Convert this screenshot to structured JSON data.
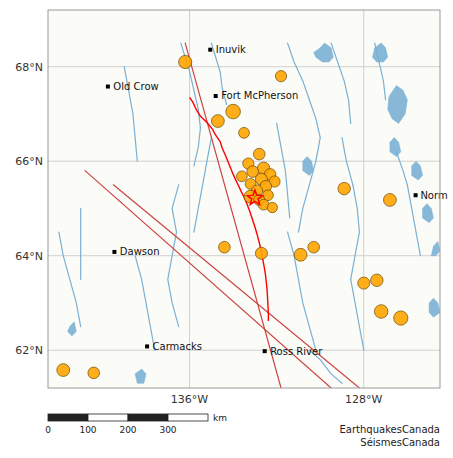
{
  "chart_data": {
    "type": "map",
    "xlim": [
      -142.5,
      -124.5
    ],
    "ylim": [
      61.2,
      69.2
    ],
    "xticks": [
      {
        "value": -136,
        "label": "136°W"
      },
      {
        "value": -128,
        "label": "128°W"
      }
    ],
    "yticks": [
      {
        "value": 62,
        "label": "62°N"
      },
      {
        "value": 64,
        "label": "64°N"
      },
      {
        "value": 66,
        "label": "66°N"
      },
      {
        "value": 68,
        "label": "68°N"
      }
    ],
    "grid": true,
    "series": [
      {
        "type": "line",
        "color": "#7ab0d4",
        "lines": [
          {
            "x": [
              -136.4,
              -136.2,
              -136.0,
              -135.8,
              -135.6,
              -135.5,
              -135.6,
              -135.8
            ],
            "y": [
              68.5,
              68.2,
              67.9,
              67.5,
              67.1,
              66.7,
              66.3,
              65.9
            ]
          },
          {
            "x": [
              -135.0,
              -134.8,
              -134.6,
              -134.5,
              -134.3
            ],
            "y": [
              68.5,
              68.2,
              67.9,
              67.55,
              67.2
            ]
          },
          {
            "x": [
              -131.5,
              -131.2,
              -130.8,
              -130.5,
              -130.2,
              -130.0
            ],
            "y": [
              68.5,
              68.1,
              67.7,
              67.3,
              66.9,
              66.5
            ]
          },
          {
            "x": [
              -129.5,
              -129.2,
              -128.9,
              -128.7,
              -128.6
            ],
            "y": [
              68.5,
              68.1,
              67.7,
              67.3,
              66.8
            ]
          },
          {
            "x": [
              -127.5,
              -127.3,
              -127.1,
              -127.0
            ],
            "y": [
              68.5,
              68.1,
              67.7,
              67.3
            ]
          },
          {
            "x": [
              -135.0,
              -135.2,
              -135.4,
              -135.6,
              -135.8
            ],
            "y": [
              66.5,
              66.0,
              65.5,
              65.0,
              64.5
            ]
          },
          {
            "x": [
              -132.0,
              -131.8,
              -131.6,
              -131.5,
              -131.4
            ],
            "y": [
              66.8,
              66.3,
              65.8,
              65.3,
              64.8
            ]
          },
          {
            "x": [
              -130.0,
              -130.2,
              -130.5,
              -130.8,
              -131.0
            ],
            "y": [
              66.5,
              66.0,
              65.5,
              65.0,
              64.5
            ]
          },
          {
            "x": [
              -128.5,
              -128.3,
              -128.2,
              -128.4,
              -128.6
            ],
            "y": [
              65.5,
              65.0,
              64.5,
              64.0,
              63.5
            ]
          },
          {
            "x": [
              -129.0,
              -128.8,
              -128.5
            ],
            "y": [
              66.5,
              66.0,
              65.5
            ]
          },
          {
            "x": [
              -136.5,
              -136.8,
              -136.6,
              -136.8,
              -137.0,
              -136.8,
              -136.5
            ],
            "y": [
              65.5,
              65.0,
              64.5,
              64.0,
              63.5,
              63.0,
              62.5
            ]
          },
          {
            "x": [
              -141.0,
              -141.0,
              -141.0,
              -141.0
            ],
            "y": [
              65.0,
              64.5,
              64.0,
              63.5
            ]
          },
          {
            "x": [
              -138.5,
              -138.2,
              -138.0,
              -137.8,
              -137.6
            ],
            "y": [
              64.0,
              63.5,
              63.0,
              62.5,
              62.0
            ]
          },
          {
            "x": [
              -131.5,
              -131.2,
              -131.0,
              -130.8,
              -130.5,
              -130.2
            ],
            "y": [
              64.5,
              64.0,
              63.5,
              63.0,
              62.5,
              62.0
            ]
          },
          {
            "x": [
              -128.6,
              -128.4,
              -128.2,
              -128.0
            ],
            "y": [
              63.5,
              63.0,
              62.5,
              62.0
            ]
          },
          {
            "x": [
              -130.5,
              -130.0,
              -129.5,
              -129.0
            ],
            "y": [
              62.0,
              61.8,
              61.5,
              61.3
            ]
          },
          {
            "x": [
              -126.0,
              -125.8,
              -125.6,
              -125.4
            ],
            "y": [
              65.5,
              65.0,
              64.5,
              64.0
            ]
          },
          {
            "x": [
              -126.5,
              -126.2,
              -126.0
            ],
            "y": [
              66.2,
              65.8,
              65.5
            ]
          },
          {
            "x": [
              -139.0,
              -138.8,
              -138.6,
              -138.5,
              -138.4
            ],
            "y": [
              68.0,
              67.5,
              67.0,
              66.5,
              66.0
            ]
          },
          {
            "x": [
              -142.0,
              -141.8,
              -141.5,
              -141.2,
              -141.0
            ],
            "y": [
              64.5,
              64.0,
              63.5,
              63.0,
              62.5
            ]
          }
        ]
      },
      {
        "type": "area",
        "color": "#7ab0d4",
        "polygons": [
          {
            "x": [
              -130.3,
              -130.0,
              -129.8,
              -129.5,
              -129.4,
              -129.6,
              -129.9,
              -130.2
            ],
            "y": [
              68.3,
              68.4,
              68.5,
              68.4,
              68.2,
              68.1,
              68.1,
              68.2
            ]
          },
          {
            "x": [
              -127.5,
              -127.2,
              -127.0,
              -126.9,
              -127.1,
              -127.4,
              -127.6
            ],
            "y": [
              68.4,
              68.5,
              68.4,
              68.2,
              68.1,
              68.1,
              68.2
            ]
          },
          {
            "x": [
              -126.8,
              -126.5,
              -126.2,
              -126.0,
              -126.1,
              -126.4,
              -126.7,
              -126.9,
              -126.85
            ],
            "y": [
              67.4,
              67.6,
              67.5,
              67.3,
              67.0,
              66.8,
              66.9,
              67.1,
              67.35
            ]
          },
          {
            "x": [
              -126.8,
              -126.6,
              -126.4,
              -126.3,
              -126.5,
              -126.8
            ],
            "y": [
              66.4,
              66.5,
              66.4,
              66.2,
              66.1,
              66.2
            ]
          },
          {
            "x": [
              -125.8,
              -125.6,
              -125.4,
              -125.3,
              -125.5,
              -125.8
            ],
            "y": [
              65.9,
              66.0,
              65.9,
              65.7,
              65.6,
              65.7
            ]
          },
          {
            "x": [
              -125.3,
              -125.1,
              -124.9,
              -124.8,
              -125.0,
              -125.3
            ],
            "y": [
              65.0,
              65.1,
              65.0,
              64.8,
              64.7,
              64.8
            ]
          },
          {
            "x": [
              -124.8,
              -124.6,
              -124.5,
              -124.7,
              -124.9
            ],
            "y": [
              64.2,
              64.3,
              64.1,
              64.0,
              64.0
            ]
          },
          {
            "x": [
              -125.0,
              -124.8,
              -124.6,
              -124.5,
              -124.8,
              -125.0
            ],
            "y": [
              63.0,
              63.1,
              63.0,
              62.8,
              62.7,
              62.8
            ]
          },
          {
            "x": [
              -138.5,
              -138.2,
              -138.0,
              -138.1,
              -138.4
            ],
            "y": [
              61.5,
              61.6,
              61.5,
              61.3,
              61.3
            ]
          },
          {
            "x": [
              -141.5,
              -141.3,
              -141.2,
              -141.4,
              -141.6
            ],
            "y": [
              62.5,
              62.6,
              62.4,
              62.3,
              62.4
            ]
          },
          {
            "x": [
              -130.8,
              -130.6,
              -130.4,
              -130.3,
              -130.5,
              -130.8
            ],
            "y": [
              66.0,
              66.1,
              66.0,
              65.8,
              65.7,
              65.8
            ]
          }
        ]
      },
      {
        "type": "line",
        "color": "#cc4444",
        "lines": [
          {
            "x": [
              -139.5,
              -128.2
            ],
            "y": [
              65.5,
              61.2
            ]
          },
          {
            "x": [
              -140.8,
              -129.5
            ],
            "y": [
              65.8,
              61.2
            ]
          },
          {
            "x": [
              -136.2,
              -131.8
            ],
            "y": [
              68.5,
              61.2
            ]
          }
        ]
      },
      {
        "type": "line",
        "color": "red",
        "x": [
          -136.0,
          -135.85,
          -135.7,
          -135.5,
          -135.2,
          -134.95,
          -134.8,
          -134.6,
          -134.5,
          -134.35,
          -134.2,
          -134.05,
          -133.9,
          -133.75,
          -133.62,
          -133.48,
          -133.35,
          -133.22,
          -133.1,
          -132.98,
          -132.88,
          -132.8,
          -132.72,
          -132.65,
          -132.58,
          -132.52,
          -132.48,
          -132.44,
          -132.42,
          -132.4,
          -132.38,
          -132.38
        ],
        "y": [
          67.35,
          67.25,
          67.1,
          66.95,
          66.82,
          66.68,
          66.55,
          66.42,
          66.28,
          66.12,
          65.95,
          65.78,
          65.62,
          65.48,
          65.35,
          65.22,
          65.08,
          64.92,
          64.75,
          64.58,
          64.42,
          64.28,
          64.12,
          63.95,
          63.78,
          63.62,
          63.45,
          63.28,
          63.12,
          62.95,
          62.78,
          62.62
        ]
      },
      {
        "type": "scatter",
        "color": "#FFA500",
        "x": [
          -136.2,
          -131.8,
          -134.0,
          -134.7,
          -133.5,
          -132.8,
          -133.3,
          -132.6,
          -133.1,
          -132.3,
          -133.6,
          -132.7,
          -132.1,
          -133.2,
          -132.5,
          -132.9,
          -132.4,
          -133.2,
          -132.8,
          -132.6,
          -132.2,
          -134.4,
          -132.7,
          -130.9,
          -130.3,
          -128.9,
          -126.8,
          -127.4,
          -128.0,
          -127.2,
          -126.3,
          -141.8,
          -140.4
        ],
        "y": [
          68.1,
          67.8,
          67.05,
          66.85,
          66.6,
          66.15,
          65.95,
          65.85,
          65.78,
          65.72,
          65.68,
          65.62,
          65.57,
          65.52,
          65.47,
          65.38,
          65.28,
          65.25,
          65.18,
          65.08,
          65.02,
          64.18,
          64.05,
          64.02,
          64.18,
          65.42,
          65.18,
          63.48,
          63.42,
          62.82,
          62.68,
          61.58,
          61.52
        ],
        "size": [
          90,
          65,
          110,
          85,
          60,
          70,
          65,
          80,
          70,
          70,
          60,
          75,
          65,
          60,
          70,
          65,
          60,
          85,
          65,
          60,
          55,
          70,
          75,
          85,
          70,
          80,
          85,
          80,
          75,
          95,
          105,
          85,
          70
        ]
      },
      {
        "type": "scatter",
        "marker": "star",
        "color": "red",
        "x": [
          -133.0
        ],
        "y": [
          65.22
        ]
      },
      {
        "type": "scatter",
        "marker": "square",
        "color": "black",
        "x": [
          -135.05,
          -139.75,
          -134.8,
          -125.62,
          -139.45,
          -137.95,
          -132.55
        ],
        "y": [
          68.36,
          67.58,
          67.38,
          65.28,
          64.08,
          62.08,
          61.98
        ],
        "labels": [
          "Inuvik",
          "Old Crow",
          "Fort McPherson",
          "Norm",
          "Dawson",
          "Carmacks",
          "Ross River"
        ],
        "label_x": [
          -134.8,
          -139.5,
          -134.55,
          -125.4,
          -139.2,
          -137.7,
          -132.3
        ],
        "label_y": [
          68.36,
          67.58,
          67.38,
          65.28,
          64.08,
          62.08,
          61.98
        ]
      }
    ],
    "scale_bar": {
      "ticks": [
        0,
        100,
        200,
        300
      ],
      "unit": "km"
    },
    "credit": "EarthquakesCanada\nSéismesCanada"
  }
}
